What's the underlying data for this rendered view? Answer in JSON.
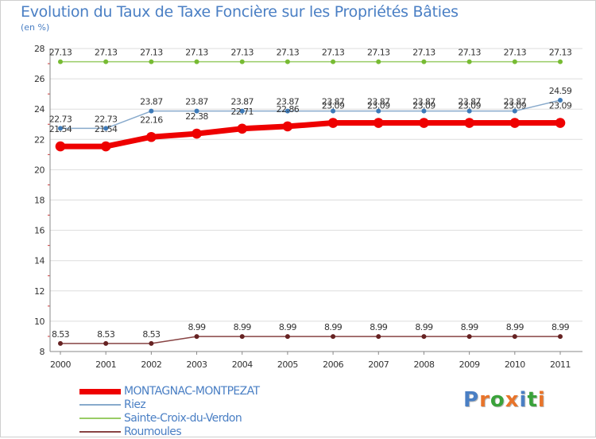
{
  "title": "Evolution du Taux de Taxe Foncière sur les Propriétés Bâties",
  "unit": "(en %)",
  "logo": {
    "text": "Proxiti",
    "letters": [
      "P",
      "r",
      "o",
      "x",
      "i",
      "t",
      "i"
    ],
    "colors": [
      "#4a7fc4",
      "#e8742a",
      "#3aa23a",
      "#e8742a",
      "#4a7fc4",
      "#3aa23a",
      "#e8742a"
    ]
  },
  "chart_data": {
    "type": "line",
    "title": "Evolution du Taux de Taxe Foncière sur les Propriétés Bâties",
    "ylabel": "(en %)",
    "xlabel": "",
    "ylim": [
      8,
      28
    ],
    "yticks": [
      8,
      10,
      12,
      14,
      16,
      18,
      20,
      22,
      24,
      26,
      28
    ],
    "categories": [
      "2000",
      "2001",
      "2002",
      "2003",
      "2004",
      "2005",
      "2006",
      "2007",
      "2008",
      "2009",
      "2010",
      "2011"
    ],
    "legend_position": "bottom-left",
    "series": [
      {
        "name": "Sainte-Croix-du-Verdon",
        "color": "#99cc66",
        "marker": "#77bb33",
        "width": 1.5,
        "values": [
          27.13,
          27.13,
          27.13,
          27.13,
          27.13,
          27.13,
          27.13,
          27.13,
          27.13,
          27.13,
          27.13,
          27.13
        ],
        "labels": [
          "27.13",
          "27.13",
          "27.13",
          "27.13",
          "27.13",
          "27.13",
          "27.13",
          "27.13",
          "27.13",
          "27.13",
          "27.13",
          "27.13"
        ]
      },
      {
        "name": "Riez",
        "color": "#88aacc",
        "marker": "#3d7ab8",
        "width": 1.5,
        "values": [
          22.73,
          22.73,
          23.87,
          23.87,
          23.87,
          23.87,
          23.87,
          23.87,
          23.87,
          23.87,
          23.87,
          24.59
        ],
        "labels": [
          "22.73",
          "22.73",
          "23.87",
          "23.87",
          "23.87",
          "23.87",
          "23.87",
          "23.87",
          "23.87",
          "23.87",
          "23.87",
          "24.59"
        ]
      },
      {
        "name": "MONTAGNAC-MONTPEZAT",
        "color": "#ee0000",
        "marker": "#ee0000",
        "width": 7,
        "values": [
          21.54,
          21.54,
          22.16,
          22.38,
          22.71,
          22.86,
          23.09,
          23.09,
          23.09,
          23.09,
          23.09,
          23.09
        ],
        "labels": [
          "21.54",
          "21.54",
          "22.16",
          "22.38",
          "22.71",
          "22.86",
          "23.09",
          "23.09",
          "23.09",
          "23.09",
          "23.09",
          "23.09"
        ]
      },
      {
        "name": "Roumoules",
        "color": "#884444",
        "marker": "#662222",
        "width": 1.5,
        "values": [
          8.53,
          8.53,
          8.53,
          8.99,
          8.99,
          8.99,
          8.99,
          8.99,
          8.99,
          8.99,
          8.99,
          8.99
        ],
        "labels": [
          "8.53",
          "8.53",
          "8.53",
          "8.99",
          "8.99",
          "8.99",
          "8.99",
          "8.99",
          "8.99",
          "8.99",
          "8.99",
          "8.99"
        ]
      }
    ],
    "legend": [
      {
        "name": "MONTAGNAC-MONTPEZAT",
        "color": "#ee0000",
        "width": 7
      },
      {
        "name": "Riez",
        "color": "#88aacc",
        "width": 2
      },
      {
        "name": "Sainte-Croix-du-Verdon",
        "color": "#99cc66",
        "width": 2
      },
      {
        "name": "Roumoules",
        "color": "#884444",
        "width": 2
      }
    ]
  }
}
